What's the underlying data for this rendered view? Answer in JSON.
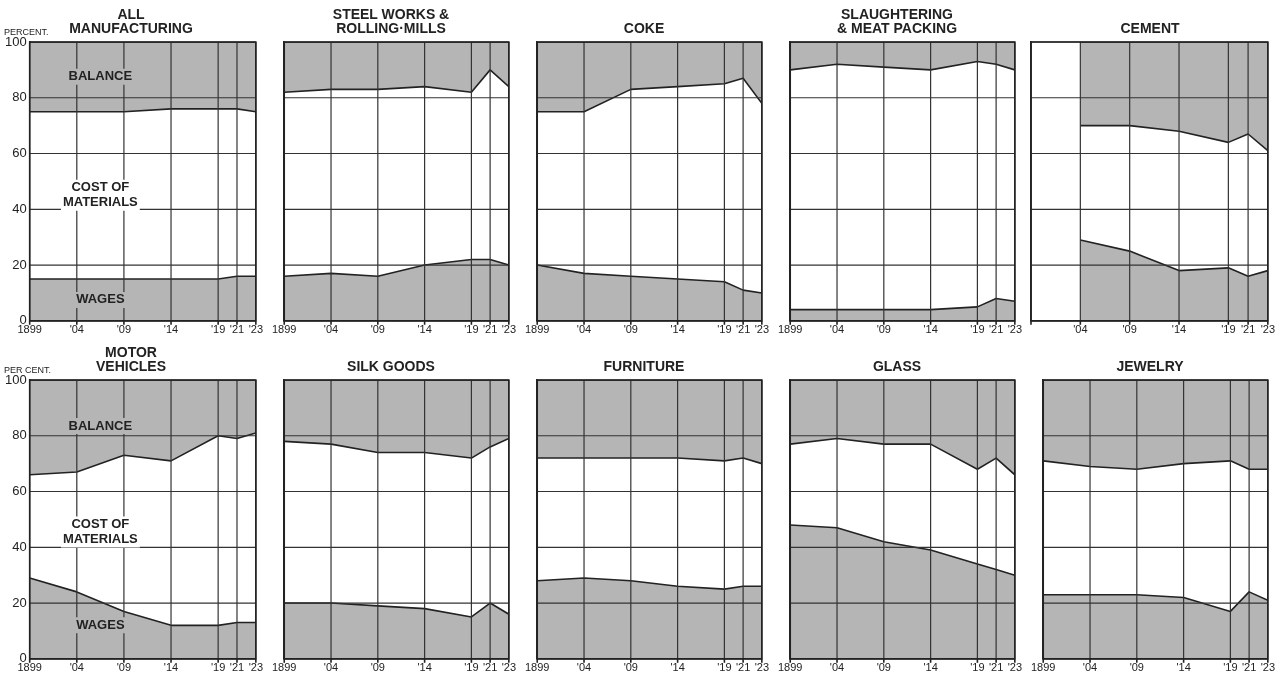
{
  "chart_data": [
    {
      "type": "area",
      "title": "ALL\nMANUFACTURING",
      "ylabel": "PERCENT.",
      "stacked": true,
      "grid": true,
      "x": [
        1899,
        1904,
        1909,
        1914,
        1919,
        1921,
        1923
      ],
      "xlim": [
        1899,
        1923
      ],
      "xticks": [
        {
          "value": 1899,
          "label": "1899"
        },
        {
          "value": 1904,
          "label": "'04"
        },
        {
          "value": 1909,
          "label": "'09"
        },
        {
          "value": 1914,
          "label": "'14"
        },
        {
          "value": 1919,
          "label": "'19"
        },
        {
          "value": 1921,
          "label": "'21"
        },
        {
          "value": 1923,
          "label": "'23"
        }
      ],
      "ylim": [
        0,
        100
      ],
      "yticks": [
        0,
        20,
        40,
        60,
        80,
        100
      ],
      "series": [
        {
          "name": "WAGES",
          "color": "#b5b5b5",
          "values": [
            15,
            15,
            15,
            15,
            15,
            16,
            16
          ]
        },
        {
          "name": "COST OF MATERIALS",
          "color": "#ffffff",
          "values": [
            60,
            60,
            60,
            61,
            61,
            60,
            59
          ]
        },
        {
          "name": "BALANCE",
          "color": "#b5b5b5",
          "values": [
            25,
            25,
            25,
            24,
            24,
            24,
            25
          ]
        }
      ]
    },
    {
      "type": "area",
      "title": "STEEL WORKS &\nROLLING·MILLS",
      "stacked": true,
      "grid": true,
      "tick_labels": "x",
      "x": [
        1899,
        1904,
        1909,
        1914,
        1919,
        1921,
        1923
      ],
      "xlim": [
        1899,
        1923
      ],
      "xticks": [
        {
          "value": 1899,
          "label": "1899"
        },
        {
          "value": 1904,
          "label": "'04"
        },
        {
          "value": 1909,
          "label": "'09"
        },
        {
          "value": 1914,
          "label": "'14"
        },
        {
          "value": 1919,
          "label": "'19"
        },
        {
          "value": 1921,
          "label": "'21"
        },
        {
          "value": 1923,
          "label": "'23"
        }
      ],
      "ylim": [
        0,
        100
      ],
      "yticks": [
        0,
        20,
        40,
        60,
        80,
        100
      ],
      "series": [
        {
          "color": "#b5b5b5",
          "values": [
            16,
            17,
            16,
            20,
            22,
            22,
            20
          ]
        },
        {
          "color": "#ffffff",
          "values": [
            66,
            66,
            67,
            64,
            60,
            68,
            64
          ]
        },
        {
          "color": "#b5b5b5",
          "values": [
            18,
            17,
            17,
            16,
            18,
            10,
            16
          ]
        }
      ]
    },
    {
      "type": "area",
      "title": "COKE",
      "stacked": true,
      "grid": true,
      "tick_labels": "x",
      "x": [
        1899,
        1904,
        1909,
        1914,
        1919,
        1921,
        1923
      ],
      "xlim": [
        1899,
        1923
      ],
      "xticks": [
        {
          "value": 1899,
          "label": "1899"
        },
        {
          "value": 1904,
          "label": "'04"
        },
        {
          "value": 1909,
          "label": "'09"
        },
        {
          "value": 1914,
          "label": "'14"
        },
        {
          "value": 1919,
          "label": "'19"
        },
        {
          "value": 1921,
          "label": "'21"
        },
        {
          "value": 1923,
          "label": "'23"
        }
      ],
      "ylim": [
        0,
        100
      ],
      "yticks": [
        0,
        20,
        40,
        60,
        80,
        100
      ],
      "series": [
        {
          "color": "#b5b5b5",
          "values": [
            20,
            17,
            16,
            15,
            14,
            11,
            10
          ]
        },
        {
          "color": "#ffffff",
          "values": [
            55,
            58,
            67,
            69,
            71,
            76,
            68
          ]
        },
        {
          "color": "#b5b5b5",
          "values": [
            25,
            25,
            17,
            16,
            15,
            13,
            22
          ]
        }
      ]
    },
    {
      "type": "area",
      "title": "SLAUGHTERING\n& MEAT PACKING",
      "stacked": true,
      "grid": true,
      "tick_labels": "x",
      "x": [
        1899,
        1904,
        1909,
        1914,
        1919,
        1921,
        1923
      ],
      "xlim": [
        1899,
        1923
      ],
      "xticks": [
        {
          "value": 1899,
          "label": "1899"
        },
        {
          "value": 1904,
          "label": "'04"
        },
        {
          "value": 1909,
          "label": "'09"
        },
        {
          "value": 1914,
          "label": "'14"
        },
        {
          "value": 1919,
          "label": "'19"
        },
        {
          "value": 1921,
          "label": "'21"
        },
        {
          "value": 1923,
          "label": "'23"
        }
      ],
      "ylim": [
        0,
        100
      ],
      "yticks": [
        0,
        20,
        40,
        60,
        80,
        100
      ],
      "series": [
        {
          "color": "#b5b5b5",
          "values": [
            4,
            4,
            4,
            4,
            5,
            8,
            7
          ]
        },
        {
          "color": "#ffffff",
          "values": [
            86,
            88,
            87,
            86,
            88,
            84,
            83
          ]
        },
        {
          "color": "#b5b5b5",
          "values": [
            10,
            8,
            9,
            10,
            7,
            8,
            10
          ]
        }
      ]
    },
    {
      "type": "area",
      "title": "CEMENT",
      "stacked": true,
      "grid": true,
      "tick_labels": "x",
      "x": [
        1904,
        1909,
        1914,
        1919,
        1921,
        1923
      ],
      "xlim": [
        1899,
        1923
      ],
      "xticks": [
        {
          "value": 1899,
          "label": null
        },
        {
          "value": 1904,
          "label": "'04"
        },
        {
          "value": 1909,
          "label": "'09"
        },
        {
          "value": 1914,
          "label": "'14"
        },
        {
          "value": 1919,
          "label": "'19"
        },
        {
          "value": 1921,
          "label": "'21"
        },
        {
          "value": 1923,
          "label": "'23"
        }
      ],
      "ylim": [
        0,
        100
      ],
      "yticks": [
        0,
        20,
        40,
        60,
        80,
        100
      ],
      "series": [
        {
          "color": "#b5b5b5",
          "values": [
            29,
            25,
            18,
            19,
            16,
            18
          ]
        },
        {
          "color": "#ffffff",
          "values": [
            41,
            45,
            50,
            45,
            51,
            43
          ]
        },
        {
          "color": "#b5b5b5",
          "values": [
            30,
            30,
            32,
            36,
            33,
            39
          ]
        }
      ]
    },
    {
      "type": "area",
      "title": "MOTOR\nVEHICLES",
      "ylabel": "PER CENT.",
      "stacked": true,
      "grid": true,
      "x": [
        1899,
        1904,
        1909,
        1914,
        1919,
        1921,
        1923
      ],
      "xlim": [
        1899,
        1923
      ],
      "xticks": [
        {
          "value": 1899,
          "label": "1899"
        },
        {
          "value": 1904,
          "label": "'04"
        },
        {
          "value": 1909,
          "label": "'09"
        },
        {
          "value": 1914,
          "label": "'14"
        },
        {
          "value": 1919,
          "label": "'19"
        },
        {
          "value": 1921,
          "label": "'21"
        },
        {
          "value": 1923,
          "label": "'23"
        }
      ],
      "ylim": [
        0,
        100
      ],
      "yticks": [
        0,
        20,
        40,
        60,
        80,
        100
      ],
      "series": [
        {
          "name": "WAGES",
          "color": "#b5b5b5",
          "values": [
            29,
            24,
            17,
            12,
            12,
            13,
            13
          ]
        },
        {
          "name": "COST OF MATERIALS",
          "color": "#ffffff",
          "values": [
            37,
            43,
            56,
            59,
            68,
            66,
            68
          ]
        },
        {
          "name": "BALANCE",
          "color": "#b5b5b5",
          "values": [
            34,
            33,
            27,
            29,
            20,
            21,
            19
          ]
        }
      ]
    },
    {
      "type": "area",
      "title": "SILK GOODS",
      "stacked": true,
      "grid": true,
      "tick_labels": "x",
      "x": [
        1899,
        1904,
        1909,
        1914,
        1919,
        1921,
        1923
      ],
      "xlim": [
        1899,
        1923
      ],
      "xticks": [
        {
          "value": 1899,
          "label": "1899"
        },
        {
          "value": 1904,
          "label": "'04"
        },
        {
          "value": 1909,
          "label": "'09"
        },
        {
          "value": 1914,
          "label": "'14"
        },
        {
          "value": 1919,
          "label": "'19"
        },
        {
          "value": 1921,
          "label": "'21"
        },
        {
          "value": 1923,
          "label": "'23"
        }
      ],
      "ylim": [
        0,
        100
      ],
      "yticks": [
        0,
        20,
        40,
        60,
        80,
        100
      ],
      "series": [
        {
          "color": "#b5b5b5",
          "values": [
            20,
            20,
            19,
            18,
            15,
            20,
            16
          ]
        },
        {
          "color": "#ffffff",
          "values": [
            58,
            57,
            55,
            56,
            57,
            56,
            63
          ]
        },
        {
          "color": "#b5b5b5",
          "values": [
            22,
            23,
            26,
            26,
            28,
            24,
            21
          ]
        }
      ]
    },
    {
      "type": "area",
      "title": "FURNITURE",
      "stacked": true,
      "grid": true,
      "tick_labels": "x",
      "x": [
        1899,
        1904,
        1909,
        1914,
        1919,
        1921,
        1923
      ],
      "xlim": [
        1899,
        1923
      ],
      "xticks": [
        {
          "value": 1899,
          "label": "1899"
        },
        {
          "value": 1904,
          "label": "'04"
        },
        {
          "value": 1909,
          "label": "'09"
        },
        {
          "value": 1914,
          "label": "'14"
        },
        {
          "value": 1919,
          "label": "'19"
        },
        {
          "value": 1921,
          "label": "'21"
        },
        {
          "value": 1923,
          "label": "'23"
        }
      ],
      "ylim": [
        0,
        100
      ],
      "yticks": [
        0,
        20,
        40,
        60,
        80,
        100
      ],
      "series": [
        {
          "color": "#b5b5b5",
          "values": [
            28,
            29,
            28,
            26,
            25,
            26,
            26
          ]
        },
        {
          "color": "#ffffff",
          "values": [
            44,
            43,
            44,
            46,
            46,
            46,
            44
          ]
        },
        {
          "color": "#b5b5b5",
          "values": [
            28,
            28,
            28,
            28,
            29,
            28,
            30
          ]
        }
      ]
    },
    {
      "type": "area",
      "title": "GLASS",
      "stacked": true,
      "grid": true,
      "tick_labels": "x",
      "x": [
        1899,
        1904,
        1909,
        1914,
        1919,
        1921,
        1923
      ],
      "xlim": [
        1899,
        1923
      ],
      "xticks": [
        {
          "value": 1899,
          "label": "1899"
        },
        {
          "value": 1904,
          "label": "'04"
        },
        {
          "value": 1909,
          "label": "'09"
        },
        {
          "value": 1914,
          "label": "'14"
        },
        {
          "value": 1919,
          "label": "'19"
        },
        {
          "value": 1921,
          "label": "'21"
        },
        {
          "value": 1923,
          "label": "'23"
        }
      ],
      "ylim": [
        0,
        100
      ],
      "yticks": [
        0,
        20,
        40,
        60,
        80,
        100
      ],
      "series": [
        {
          "color": "#b5b5b5",
          "values": [
            48,
            47,
            42,
            39,
            34,
            32,
            30
          ]
        },
        {
          "color": "#ffffff",
          "values": [
            29,
            32,
            35,
            38,
            34,
            40,
            36
          ]
        },
        {
          "color": "#b5b5b5",
          "values": [
            23,
            21,
            23,
            23,
            32,
            28,
            34
          ]
        }
      ]
    },
    {
      "type": "area",
      "title": "JEWELRY",
      "stacked": true,
      "grid": true,
      "tick_labels": "x",
      "x": [
        1899,
        1904,
        1909,
        1914,
        1919,
        1921,
        1923
      ],
      "xlim": [
        1899,
        1923
      ],
      "xticks": [
        {
          "value": 1899,
          "label": "1899"
        },
        {
          "value": 1904,
          "label": "'04"
        },
        {
          "value": 1909,
          "label": "'09"
        },
        {
          "value": 1914,
          "label": "'14"
        },
        {
          "value": 1919,
          "label": "'19"
        },
        {
          "value": 1921,
          "label": "'21"
        },
        {
          "value": 1923,
          "label": "'23"
        }
      ],
      "ylim": [
        0,
        100
      ],
      "yticks": [
        0,
        20,
        40,
        60,
        80,
        100
      ],
      "series": [
        {
          "color": "#b5b5b5",
          "values": [
            23,
            23,
            23,
            22,
            17,
            24,
            21
          ]
        },
        {
          "color": "#ffffff",
          "values": [
            48,
            46,
            45,
            48,
            54,
            44,
            47
          ]
        },
        {
          "color": "#b5b5b5",
          "values": [
            29,
            31,
            32,
            30,
            29,
            32,
            32
          ]
        }
      ]
    }
  ]
}
